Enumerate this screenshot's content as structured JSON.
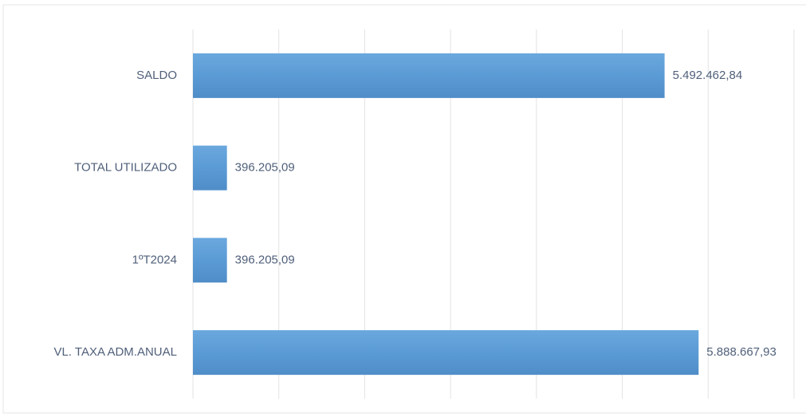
{
  "chart_data": {
    "type": "barh",
    "categories": [
      "SALDO",
      "TOTAL UTILIZADO",
      "1ºT2024",
      "VL. TAXA ADM.ANUAL"
    ],
    "values": [
      5492462.84,
      396205.09,
      396205.09,
      5888667.93
    ],
    "value_labels": [
      "5.492.462,84",
      "396.205,09",
      "396.205,09",
      "5.888.667,93"
    ],
    "color": "#5b9bd5",
    "xlim": [
      0,
      7000000
    ],
    "xticks": [
      0,
      1000000,
      2000000,
      3000000,
      4000000,
      5000000,
      6000000,
      7000000
    ],
    "grid": true
  }
}
